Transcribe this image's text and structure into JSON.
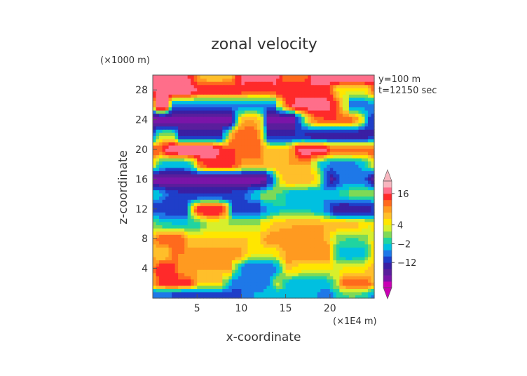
{
  "chart_data": {
    "type": "heatmap",
    "title": "zonal velocity",
    "xlabel": "x-coordinate",
    "ylabel": "z-coordinate",
    "x_unit": "(×1E4 m)",
    "y_unit": "(×1000 m)",
    "annotations": [
      "y=100 m",
      "t=12150 sec"
    ],
    "xlim": [
      0,
      25
    ],
    "ylim": [
      0,
      30
    ],
    "x_ticks": [
      5,
      10,
      15,
      20
    ],
    "y_ticks": [
      4,
      8,
      12,
      16,
      20,
      24,
      28
    ],
    "colorbar": {
      "tick_labels": [
        "16",
        "4",
        "−2",
        "−12"
      ],
      "levels": [
        -30,
        -24,
        -20,
        -16,
        -12,
        -8,
        -5,
        -2,
        0,
        2,
        4,
        6,
        8,
        10,
        12,
        16,
        20,
        30
      ],
      "colors": [
        "#c900b4",
        "#7a15a8",
        "#5a1e9c",
        "#3a1fa3",
        "#1f3ec9",
        "#1e78e8",
        "#00c0e0",
        "#20d4a0",
        "#7ed957",
        "#d8ef2c",
        "#ffe600",
        "#ffbf2a",
        "#ff9a20",
        "#ff6a1d",
        "#ff2a2a",
        "#ff6e8a",
        "#f7b6bf"
      ],
      "extend": "both"
    },
    "field_bands": [
      {
        "z": 0.5,
        "u": -8,
        "x_mod": [
          [
            2,
            10,
            -2
          ],
          [
            10,
            20,
            4
          ],
          [
            20,
            25,
            8
          ]
        ]
      },
      {
        "z": 2,
        "u": 6,
        "x_mod": [
          [
            0,
            5,
            8
          ],
          [
            8,
            14,
            -14
          ],
          [
            14,
            21,
            -10
          ],
          [
            21,
            25,
            6
          ]
        ]
      },
      {
        "z": 4,
        "u": 8,
        "x_mod": [
          [
            0,
            3,
            6
          ],
          [
            9,
            15,
            -16
          ],
          [
            15,
            25,
            -4
          ]
        ]
      },
      {
        "z": 6,
        "u": 10,
        "x_mod": [
          [
            0,
            2,
            -4
          ],
          [
            10,
            15,
            -6
          ],
          [
            20,
            25,
            -14
          ]
        ]
      },
      {
        "z": 8,
        "u": 6,
        "x_mod": [
          [
            0,
            4,
            6
          ],
          [
            12,
            20,
            4
          ],
          [
            20,
            25,
            -6
          ]
        ]
      },
      {
        "z": 10,
        "u": 2,
        "x_mod": [
          [
            0,
            6,
            -4
          ],
          [
            12,
            25,
            6
          ]
        ]
      },
      {
        "z": 12,
        "u": -10,
        "x_mod": [
          [
            4,
            9,
            26
          ],
          [
            12,
            20,
            8
          ],
          [
            20,
            25,
            -6
          ]
        ]
      },
      {
        "z": 14,
        "u": 2,
        "x_mod": [
          [
            0,
            12,
            -14
          ],
          [
            14,
            22,
            -6
          ]
        ]
      },
      {
        "z": 16,
        "u": -22,
        "x_mod": [
          [
            13,
            20,
            30
          ],
          [
            20,
            25,
            16
          ]
        ]
      },
      {
        "z": 18,
        "u": 8,
        "x_mod": [
          [
            0,
            5,
            -12
          ],
          [
            5,
            10,
            6
          ],
          [
            18,
            25,
            -14
          ]
        ]
      },
      {
        "z": 20,
        "u": 12,
        "x_mod": [
          [
            1,
            8,
            8
          ],
          [
            12,
            16,
            -6
          ],
          [
            16,
            20,
            6
          ]
        ]
      },
      {
        "z": 22,
        "u": -12,
        "x_mod": [
          [
            0,
            3,
            14
          ],
          [
            8,
            13,
            24
          ],
          [
            17,
            25,
            -4
          ]
        ]
      },
      {
        "z": 24,
        "u": -22,
        "x_mod": [
          [
            9,
            13,
            30
          ],
          [
            16,
            25,
            34
          ]
        ]
      },
      {
        "z": 26,
        "u": -6,
        "x_mod": [
          [
            0,
            2,
            26
          ],
          [
            14,
            22,
            24
          ]
        ]
      },
      {
        "z": 28,
        "u": 14,
        "x_mod": [
          [
            0,
            5,
            6
          ],
          [
            10,
            14,
            -2
          ],
          [
            20,
            25,
            -10
          ]
        ]
      },
      {
        "z": 30,
        "u": 20,
        "x_mod": [
          [
            4,
            10,
            -14
          ],
          [
            14,
            18,
            -10
          ]
        ]
      }
    ]
  }
}
